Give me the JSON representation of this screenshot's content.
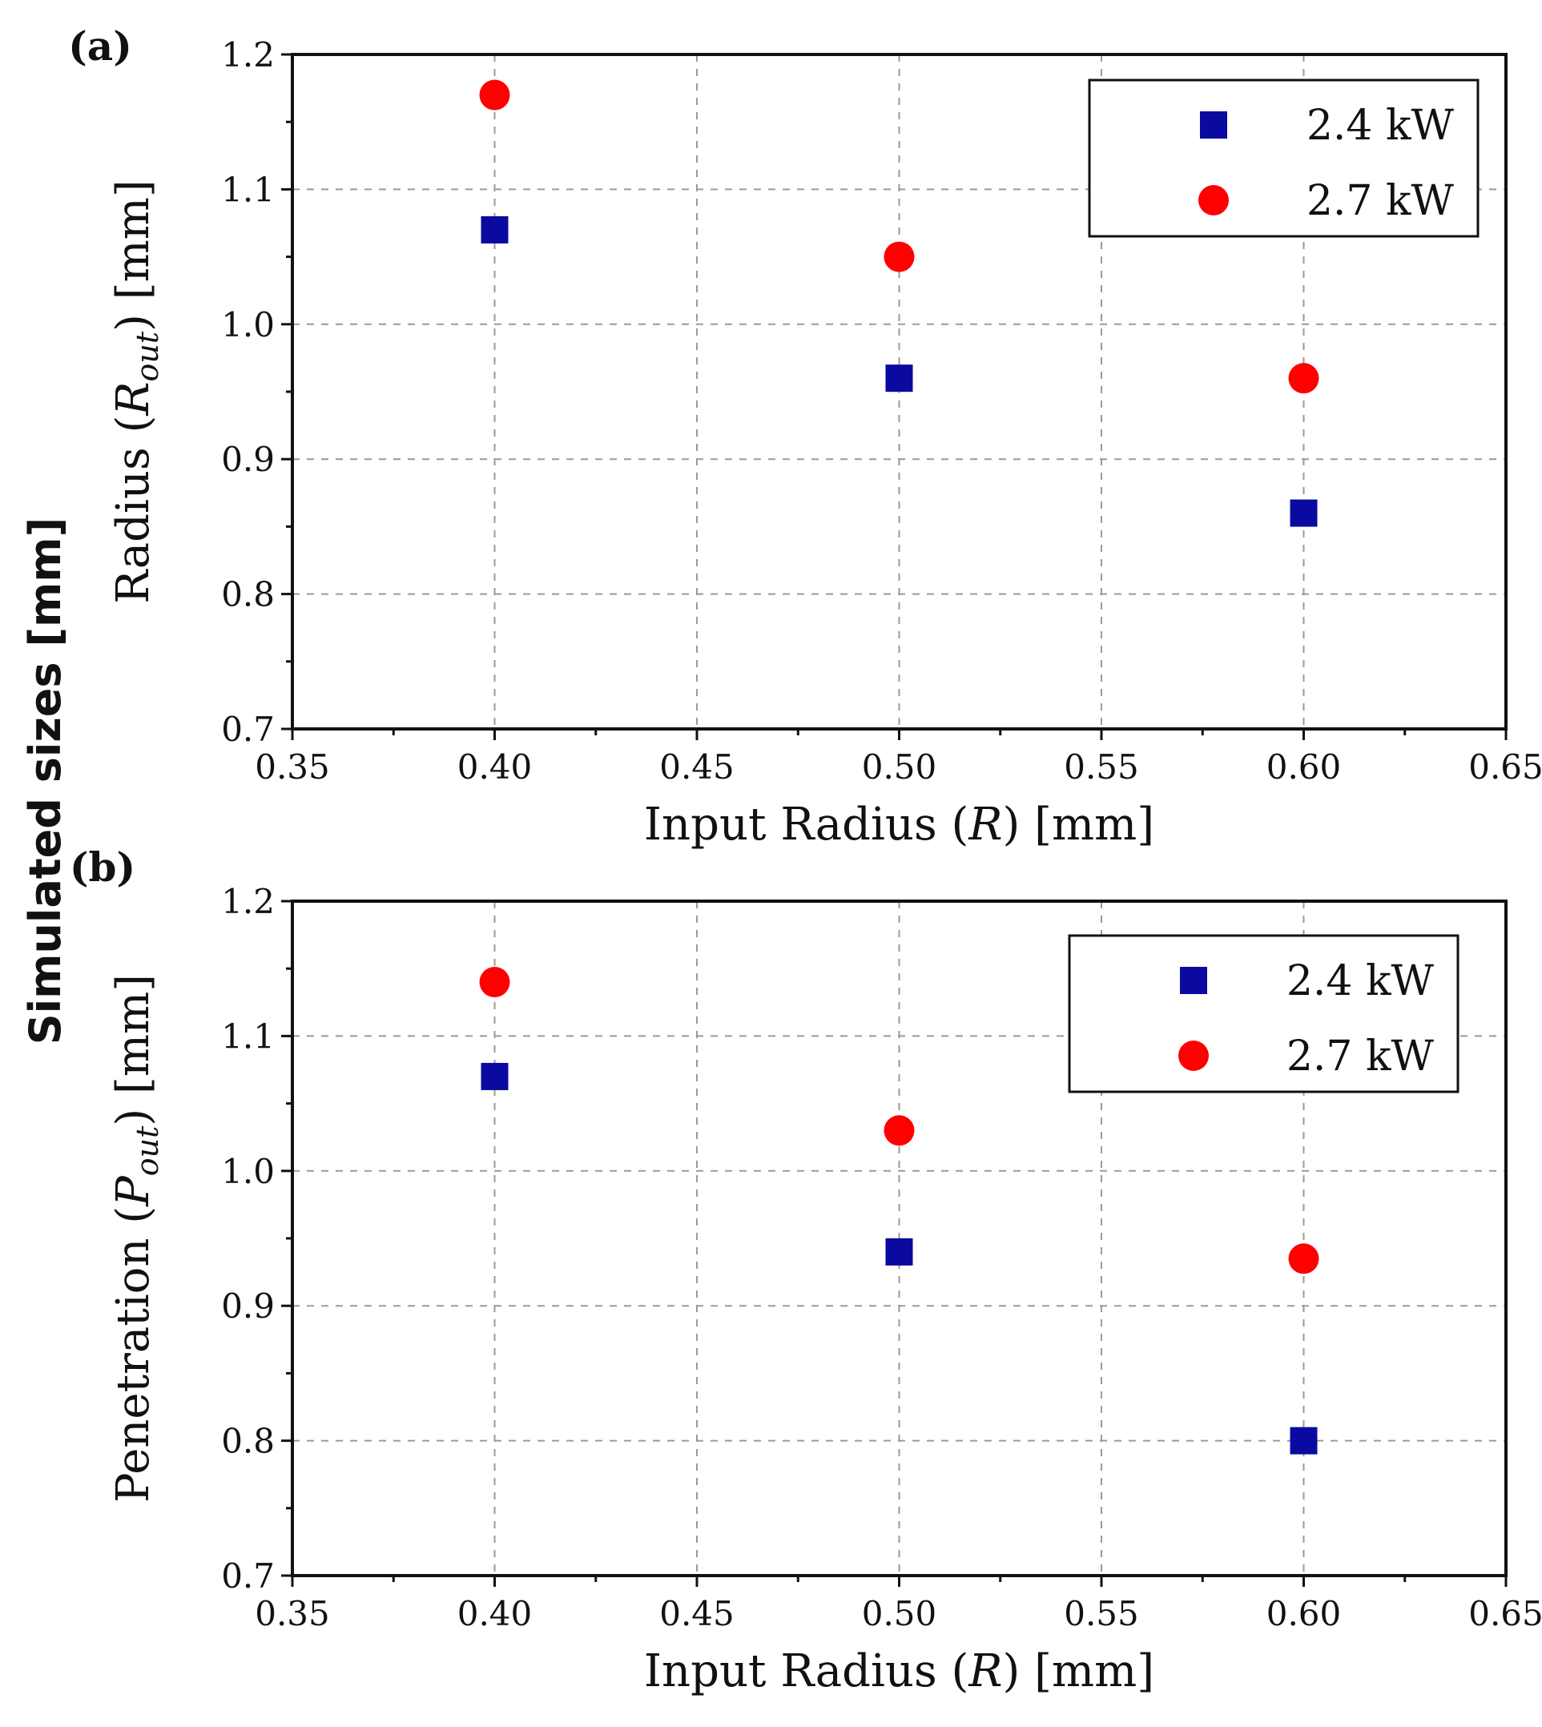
{
  "figure": {
    "shared_ylabel": "Simulated sizes [mm]"
  },
  "chart_data": [
    {
      "type": "scatter",
      "panel_label": "(a)",
      "xlabel_prefix": "Input Radius (",
      "xlabel_var": "R",
      "xlabel_suffix": ") [mm]",
      "ylabel_prefix": "Radius (",
      "ylabel_var": "R",
      "ylabel_sub": "out",
      "ylabel_suffix": ") [mm]",
      "xlim": [
        0.35,
        0.65
      ],
      "ylim": [
        0.7,
        1.2
      ],
      "xticks": [
        0.35,
        0.4,
        0.45,
        0.5,
        0.55,
        0.6,
        0.65
      ],
      "xtick_labels": [
        "0.35",
        "0.40",
        "0.45",
        "0.50",
        "0.55",
        "0.60",
        "0.65"
      ],
      "yticks": [
        0.7,
        0.8,
        0.9,
        1.0,
        1.1,
        1.2
      ],
      "ytick_labels": [
        "0.7",
        "0.8",
        "0.9",
        "1.0",
        "1.1",
        "1.2"
      ],
      "grid": true,
      "legend_position": "top-right",
      "series": [
        {
          "name": "2.4 kW",
          "marker": "square",
          "color": "#0a0aa0",
          "x": [
            0.4,
            0.5,
            0.6
          ],
          "y": [
            1.07,
            0.96,
            0.86
          ]
        },
        {
          "name": "2.7 kW",
          "marker": "circle",
          "color": "#ff0000",
          "x": [
            0.4,
            0.5,
            0.6
          ],
          "y": [
            1.17,
            1.05,
            0.96
          ]
        }
      ]
    },
    {
      "type": "scatter",
      "panel_label": "(b)",
      "xlabel_prefix": "Input Radius (",
      "xlabel_var": "R",
      "xlabel_suffix": ") [mm]",
      "ylabel_prefix": "Penetration (",
      "ylabel_var": "P",
      "ylabel_sub": "out",
      "ylabel_suffix": ") [mm]",
      "xlim": [
        0.35,
        0.65
      ],
      "ylim": [
        0.7,
        1.2
      ],
      "xticks": [
        0.35,
        0.4,
        0.45,
        0.5,
        0.55,
        0.6,
        0.65
      ],
      "xtick_labels": [
        "0.35",
        "0.40",
        "0.45",
        "0.50",
        "0.55",
        "0.60",
        "0.65"
      ],
      "yticks": [
        0.7,
        0.8,
        0.9,
        1.0,
        1.1,
        1.2
      ],
      "ytick_labels": [
        "0.7",
        "0.8",
        "0.9",
        "1.0",
        "1.1",
        "1.2"
      ],
      "grid": true,
      "legend_position": "top-right",
      "series": [
        {
          "name": "2.4 kW",
          "marker": "square",
          "color": "#0a0aa0",
          "x": [
            0.4,
            0.5,
            0.6
          ],
          "y": [
            1.07,
            0.94,
            0.8
          ]
        },
        {
          "name": "2.7 kW",
          "marker": "circle",
          "color": "#ff0000",
          "x": [
            0.4,
            0.5,
            0.6
          ],
          "y": [
            1.14,
            1.03,
            0.935
          ]
        }
      ]
    }
  ]
}
